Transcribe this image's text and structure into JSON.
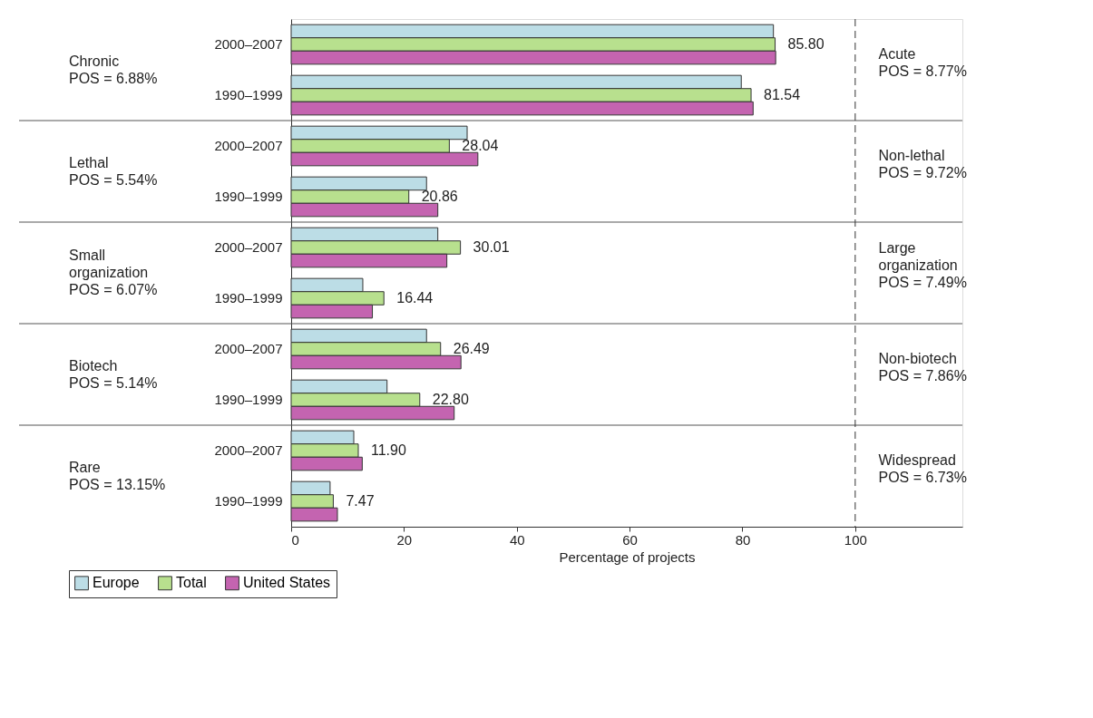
{
  "chart_data": {
    "type": "bar",
    "orientation": "horizontal",
    "xlabel": "Percentage of projects",
    "categories": [
      "2000–2007",
      "1990–1999",
      "2000–2007",
      "1990–1999",
      "2000–2007",
      "1990–1999",
      "2000–2007",
      "1990–1999",
      "2000–2007",
      "1990–1999"
    ],
    "series": [
      {
        "name": "Europe",
        "color": "#bcdde6",
        "values": [
          85.5,
          79.8,
          31.2,
          24.0,
          26.0,
          12.7,
          24.0,
          17.0,
          11.1,
          6.9
        ]
      },
      {
        "name": "Total",
        "color": "#b8e08e",
        "values": [
          85.8,
          81.54,
          28.04,
          20.86,
          30.01,
          16.44,
          26.49,
          22.8,
          11.9,
          7.47
        ],
        "value_labels": [
          "85.80",
          "81.54",
          "28.04",
          "20.86",
          "30.01",
          "16.44",
          "26.49",
          "22.80",
          "11.90",
          "7.47"
        ]
      },
      {
        "name": "United States",
        "color": "#c464b0",
        "values": [
          85.9,
          81.9,
          33.1,
          26.0,
          27.6,
          14.4,
          30.1,
          28.9,
          12.6,
          8.2
        ]
      }
    ],
    "xlim": [
      0,
      119
    ],
    "xticks": [
      0,
      20,
      40,
      60,
      80,
      100
    ],
    "ref_lines": [
      {
        "axis": "x",
        "value": 100,
        "line_style": "dashed",
        "color": "#333333"
      }
    ],
    "annotations": [
      "Chronic\nPOS = 6.88%",
      "Lethal\nPOS = 5.54%",
      "Small\norganization\nPOS = 6.07%",
      "Biotech\nPOS = 5.14%",
      "Rare\nPOS = 13.15%",
      "Acute\nPOS = 8.77%",
      "Non-lethal\nPOS = 9.72%",
      "Large\norganization\nPOS = 7.49%",
      "Non-biotech\nPOS = 7.86%",
      "Widespread\nPOS = 6.73%"
    ],
    "grid": false,
    "legend": "bottom left"
  }
}
